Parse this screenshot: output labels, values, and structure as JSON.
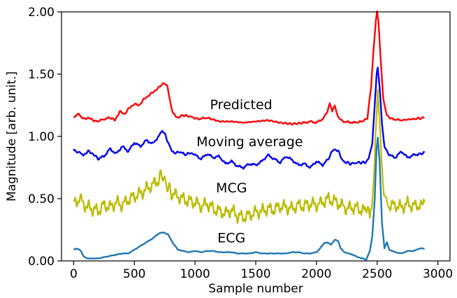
{
  "chart_data": {
    "type": "line",
    "title": "",
    "xlabel": "Sample number",
    "ylabel": "Magnitude [arb. unit.]",
    "xlim": [
      -100,
      3100
    ],
    "ylim": [
      0,
      2.0
    ],
    "xticks": [
      0,
      500,
      1000,
      1500,
      2000,
      2500,
      3000
    ],
    "xtick_labels": [
      "0",
      "500",
      "1000",
      "1500",
      "2000",
      "2500",
      "3000"
    ],
    "yticks": [
      0,
      0.5,
      1.0,
      1.5,
      2.0
    ],
    "ytick_labels": [
      "0.00",
      "0.50",
      "1.00",
      "1.50",
      "2.00"
    ],
    "grid": false,
    "legend": "none",
    "annotations": [
      {
        "text": "Predicted",
        "x": 1380,
        "y": 1.22
      },
      {
        "text": "Moving average",
        "x": 1450,
        "y": 0.92
      },
      {
        "text": "MCG",
        "x": 1300,
        "y": 0.55
      },
      {
        "text": "ECG",
        "x": 1300,
        "y": 0.15
      }
    ],
    "series": [
      {
        "color": "#ff0000",
        "x": [
          0,
          20,
          40,
          60,
          80,
          120,
          160,
          200,
          250,
          300,
          340,
          380,
          420,
          460,
          500,
          540,
          580,
          620,
          660,
          700,
          740,
          770,
          790,
          820,
          860,
          900,
          960,
          1020,
          1100,
          1200,
          1300,
          1400,
          1500,
          1600,
          1700,
          1800,
          1900,
          1950,
          2000,
          2050,
          2080,
          2110,
          2130,
          2150,
          2180,
          2220,
          2300,
          2380,
          2420,
          2450,
          2470,
          2490,
          2500,
          2510,
          2530,
          2550,
          2580,
          2620,
          2700,
          2800,
          2890
        ],
        "values": [
          1.15,
          1.17,
          1.19,
          1.16,
          1.14,
          1.15,
          1.13,
          1.12,
          1.14,
          1.15,
          1.13,
          1.2,
          1.18,
          1.23,
          1.26,
          1.25,
          1.3,
          1.33,
          1.36,
          1.39,
          1.43,
          1.41,
          1.3,
          1.18,
          1.15,
          1.17,
          1.16,
          1.14,
          1.15,
          1.12,
          1.12,
          1.11,
          1.12,
          1.13,
          1.11,
          1.1,
          1.11,
          1.12,
          1.11,
          1.14,
          1.18,
          1.26,
          1.2,
          1.25,
          1.15,
          1.12,
          1.11,
          1.12,
          1.15,
          1.4,
          1.7,
          1.94,
          2.0,
          1.93,
          1.6,
          1.3,
          1.17,
          1.14,
          1.13,
          1.14,
          1.15
        ]
      },
      {
        "color": "#0000ee",
        "x": [
          0,
          20,
          50,
          80,
          120,
          160,
          200,
          250,
          300,
          350,
          400,
          450,
          500,
          550,
          600,
          650,
          700,
          730,
          760,
          790,
          830,
          870,
          920,
          960,
          1000,
          1050,
          1100,
          1150,
          1200,
          1250,
          1300,
          1350,
          1400,
          1450,
          1500,
          1550,
          1600,
          1650,
          1700,
          1750,
          1800,
          1850,
          1900,
          1950,
          2000,
          2050,
          2100,
          2140,
          2180,
          2220,
          2280,
          2340,
          2400,
          2430,
          2460,
          2480,
          2495,
          2505,
          2520,
          2540,
          2560,
          2600,
          2650,
          2700,
          2750,
          2800,
          2850,
          2890
        ],
        "values": [
          0.89,
          0.88,
          0.87,
          0.85,
          0.88,
          0.86,
          0.82,
          0.84,
          0.9,
          0.86,
          0.92,
          0.88,
          0.95,
          0.92,
          0.97,
          0.94,
          1.0,
          1.05,
          1.0,
          0.92,
          0.86,
          0.88,
          0.85,
          0.87,
          0.85,
          0.82,
          0.86,
          0.83,
          0.84,
          0.78,
          0.8,
          0.76,
          0.75,
          0.78,
          0.77,
          0.8,
          0.85,
          0.82,
          0.79,
          0.84,
          0.81,
          0.77,
          0.78,
          0.75,
          0.8,
          0.77,
          0.82,
          0.9,
          0.88,
          0.8,
          0.78,
          0.79,
          0.79,
          0.82,
          0.95,
          1.25,
          1.5,
          1.55,
          1.4,
          1.1,
          0.92,
          0.85,
          0.83,
          0.88,
          0.83,
          0.85,
          0.86,
          0.87
        ]
      },
      {
        "color": "#bbbb00",
        "x": [
          0,
          50,
          100,
          150,
          200,
          250,
          300,
          350,
          400,
          450,
          500,
          550,
          600,
          650,
          700,
          730,
          760,
          800,
          850,
          900,
          950,
          1000,
          1050,
          1100,
          1150,
          1200,
          1250,
          1300,
          1350,
          1400,
          1450,
          1500,
          1550,
          1600,
          1650,
          1700,
          1750,
          1800,
          1850,
          1900,
          1950,
          2000,
          2050,
          2100,
          2150,
          2200,
          2250,
          2300,
          2350,
          2400,
          2440,
          2460,
          2480,
          2495,
          2505,
          2520,
          2540,
          2570,
          2600,
          2650,
          2700,
          2750,
          2800,
          2850,
          2890
        ],
        "values": [
          0.46,
          0.5,
          0.44,
          0.42,
          0.4,
          0.45,
          0.43,
          0.47,
          0.45,
          0.49,
          0.52,
          0.54,
          0.58,
          0.61,
          0.65,
          0.7,
          0.62,
          0.55,
          0.52,
          0.5,
          0.48,
          0.47,
          0.44,
          0.46,
          0.42,
          0.4,
          0.38,
          0.41,
          0.36,
          0.35,
          0.37,
          0.39,
          0.4,
          0.42,
          0.41,
          0.44,
          0.43,
          0.42,
          0.45,
          0.44,
          0.46,
          0.45,
          0.47,
          0.5,
          0.48,
          0.45,
          0.42,
          0.43,
          0.42,
          0.4,
          0.4,
          0.5,
          0.8,
          1.22,
          1.35,
          1.1,
          0.7,
          0.48,
          0.44,
          0.45,
          0.43,
          0.46,
          0.44,
          0.45,
          0.47
        ]
      },
      {
        "color": "#1f77b4",
        "x": [
          0,
          30,
          60,
          80,
          110,
          150,
          200,
          250,
          300,
          350,
          400,
          450,
          500,
          550,
          600,
          650,
          700,
          740,
          780,
          820,
          860,
          900,
          950,
          1000,
          1050,
          1100,
          1150,
          1200,
          1250,
          1300,
          1350,
          1400,
          1450,
          1500,
          1550,
          1600,
          1650,
          1700,
          1750,
          1800,
          1850,
          1900,
          1950,
          2000,
          2030,
          2060,
          2090,
          2120,
          2150,
          2180,
          2200,
          2230,
          2260,
          2300,
          2340,
          2380,
          2410,
          2440,
          2460,
          2480,
          2495,
          2505,
          2520,
          2540,
          2560,
          2580,
          2600,
          2650,
          2700,
          2750,
          2800,
          2850,
          2890
        ],
        "values": [
          0.09,
          0.1,
          0.08,
          0.04,
          0.02,
          0.02,
          0.02,
          0.03,
          0.04,
          0.05,
          0.06,
          0.06,
          0.09,
          0.12,
          0.15,
          0.18,
          0.22,
          0.23,
          0.21,
          0.14,
          0.09,
          0.08,
          0.07,
          0.08,
          0.07,
          0.08,
          0.08,
          0.07,
          0.07,
          0.07,
          0.06,
          0.06,
          0.06,
          0.07,
          0.06,
          0.06,
          0.06,
          0.06,
          0.06,
          0.07,
          0.07,
          0.06,
          0.06,
          0.07,
          0.1,
          0.14,
          0.15,
          0.13,
          0.17,
          0.16,
          0.1,
          0.07,
          0.06,
          0.05,
          0.03,
          0.02,
          0.01,
          0.08,
          0.2,
          0.5,
          0.9,
          0.99,
          0.8,
          0.3,
          0.1,
          0.15,
          0.09,
          0.07,
          0.06,
          0.08,
          0.08,
          0.1,
          0.1
        ]
      }
    ]
  }
}
